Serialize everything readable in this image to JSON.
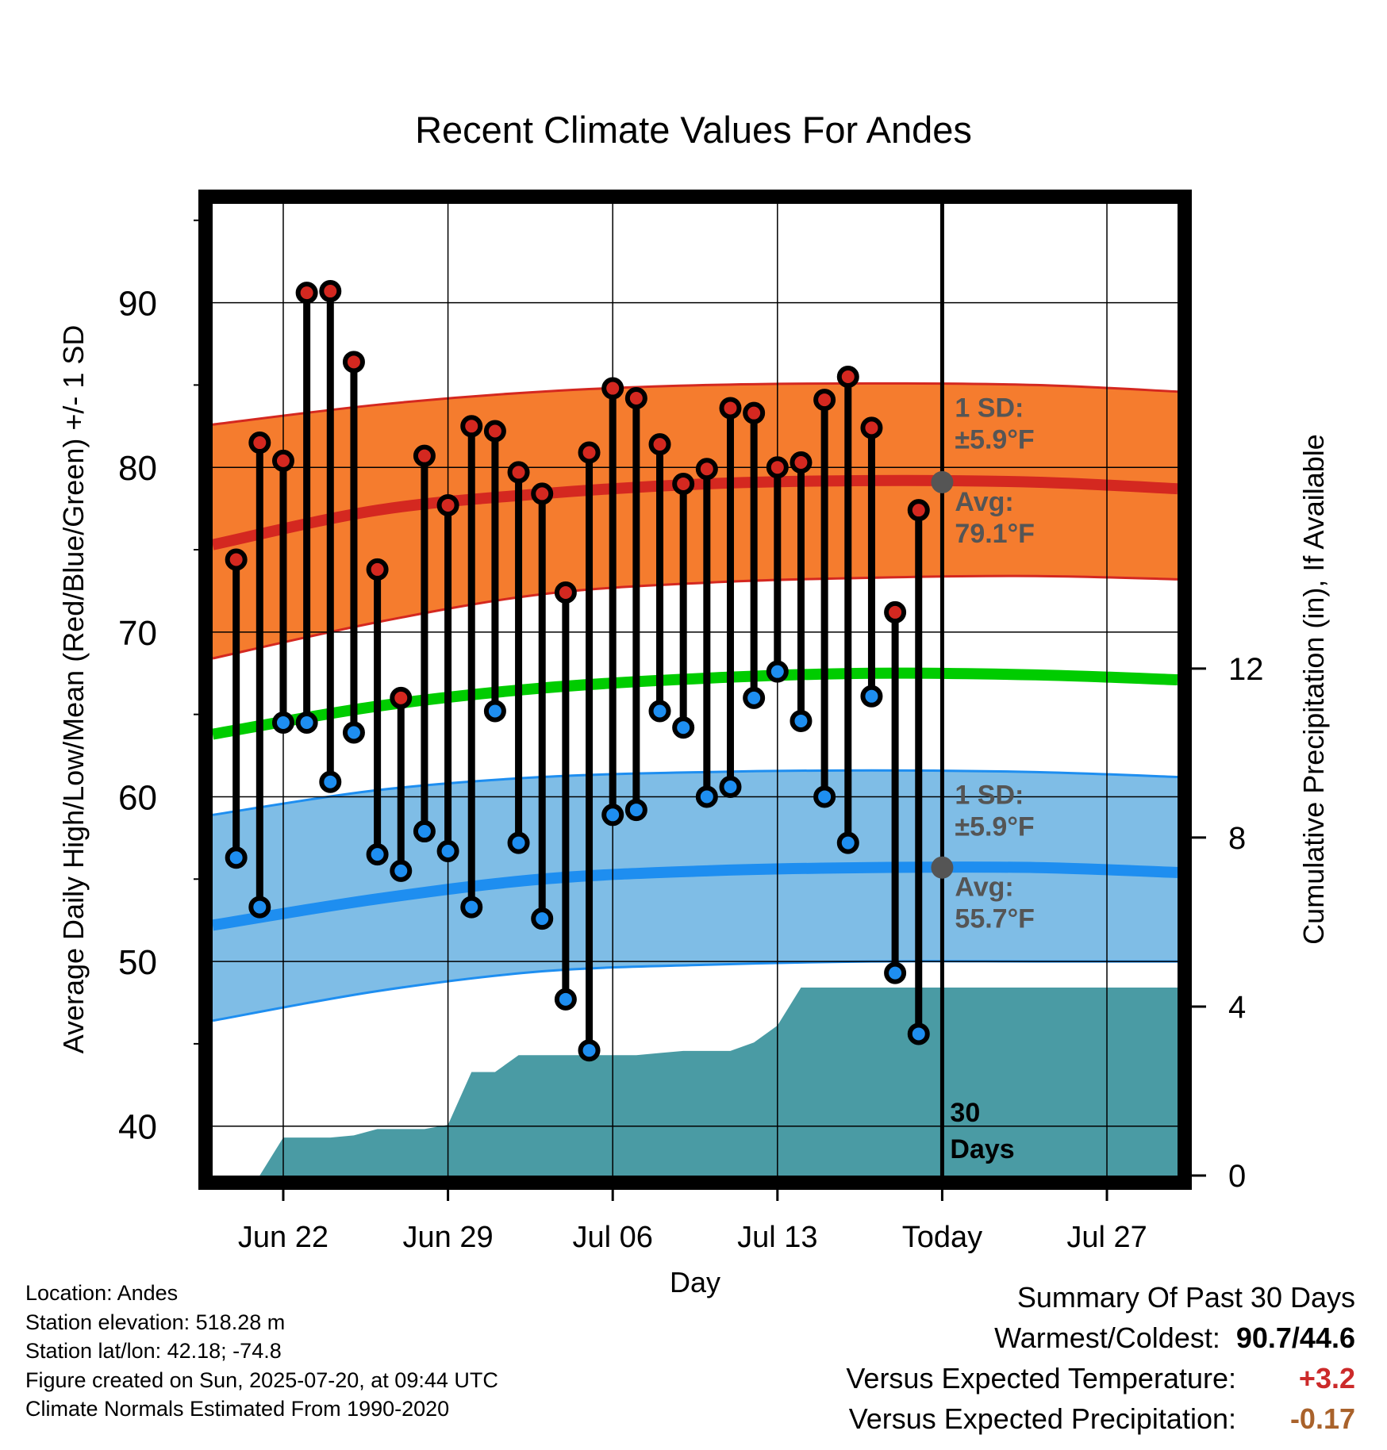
{
  "chart_data": {
    "type": "line",
    "title": "Recent Climate Values For Andes",
    "xlabel": "Day",
    "ylabel": "Average Daily High/Low/Mean (Red/Blue/Green) +/- 1 SD",
    "y2label": "Cumulative Precipitation (in), If Available",
    "x_start": "Jun 19",
    "x_end": "Jul 30",
    "xticks": [
      "Jun 22",
      "Jun 29",
      "Jul 06",
      "Jul 13",
      "Today",
      "Jul 27"
    ],
    "xtick_dates": [
      "Jun 22",
      "Jun 29",
      "Jul 06",
      "Jul 13",
      "Jul 20",
      "Jul 27"
    ],
    "ylim": [
      37,
      96
    ],
    "yticks": [
      40,
      50,
      60,
      70,
      80,
      90
    ],
    "y2lim": [
      0,
      23
    ],
    "y2ticks": [
      0,
      4,
      8,
      12
    ],
    "grid": true,
    "today_date": "Jul 20",
    "today_label": "30 Days",
    "dates": [
      "Jun 20",
      "Jun 21",
      "Jun 22",
      "Jun 23",
      "Jun 24",
      "Jun 25",
      "Jun 26",
      "Jun 27",
      "Jun 28",
      "Jun 29",
      "Jun 30",
      "Jul 01",
      "Jul 02",
      "Jul 03",
      "Jul 04",
      "Jul 05",
      "Jul 06",
      "Jul 07",
      "Jul 08",
      "Jul 09",
      "Jul 10",
      "Jul 11",
      "Jul 12",
      "Jul 13",
      "Jul 14",
      "Jul 15",
      "Jul 16",
      "Jul 17",
      "Jul 18",
      "Jul 19"
    ],
    "highs": [
      74.4,
      81.5,
      80.4,
      90.6,
      90.7,
      86.4,
      73.8,
      66.0,
      80.7,
      77.7,
      82.5,
      82.2,
      79.7,
      78.4,
      72.4,
      80.9,
      84.8,
      84.2,
      81.4,
      79.0,
      79.9,
      83.6,
      83.3,
      80.0,
      80.3,
      84.1,
      85.5,
      82.4,
      71.2,
      77.4
    ],
    "lows": [
      56.3,
      53.3,
      64.5,
      64.5,
      60.9,
      63.9,
      56.5,
      55.5,
      57.9,
      56.7,
      53.3,
      65.2,
      57.2,
      52.6,
      47.7,
      44.6,
      58.9,
      59.2,
      65.2,
      64.2,
      60.0,
      60.6,
      66.0,
      67.6,
      64.6,
      60.0,
      57.2,
      66.1,
      49.3,
      45.6
    ],
    "normal_high": {
      "dates": [
        "Jun 19",
        "Jun 26",
        "Jul 03",
        "Jul 10",
        "Jul 17",
        "Jul 24",
        "Jul 30"
      ],
      "mean": [
        75.3,
        77.4,
        78.4,
        79.0,
        79.2,
        79.1,
        78.7
      ],
      "upper": [
        82.6,
        83.8,
        84.6,
        85.0,
        85.1,
        85.0,
        84.6
      ],
      "lower": [
        68.4,
        70.6,
        72.3,
        73.0,
        73.3,
        73.4,
        73.2
      ],
      "sd_text": "±5.9°F",
      "avg_text": "79.1°F"
    },
    "normal_low": {
      "dates": [
        "Jun 19",
        "Jun 26",
        "Jul 03",
        "Jul 10",
        "Jul 17",
        "Jul 24",
        "Jul 30"
      ],
      "mean": [
        52.2,
        53.8,
        55.0,
        55.5,
        55.7,
        55.7,
        55.4
      ],
      "upper": [
        58.9,
        60.4,
        61.2,
        61.5,
        61.6,
        61.5,
        61.2
      ],
      "lower": [
        46.4,
        48.2,
        49.4,
        49.8,
        50.0,
        50.0,
        50.0
      ],
      "sd_text": "±5.9°F",
      "avg_text": "55.7°F"
    },
    "normal_mean": {
      "dates": [
        "Jun 19",
        "Jun 26",
        "Jul 03",
        "Jul 10",
        "Jul 17",
        "Jul 24",
        "Jul 30"
      ],
      "values": [
        63.8,
        65.5,
        66.6,
        67.2,
        67.5,
        67.4,
        67.1
      ]
    },
    "precip_cumulative": {
      "dates": [
        "Jun 20",
        "Jun 21",
        "Jun 22",
        "Jun 23",
        "Jun 24",
        "Jun 25",
        "Jun 26",
        "Jun 27",
        "Jun 28",
        "Jun 29",
        "Jun 30",
        "Jul 01",
        "Jul 02",
        "Jul 03",
        "Jul 04",
        "Jul 05",
        "Jul 06",
        "Jul 07",
        "Jul 08",
        "Jul 09",
        "Jul 10",
        "Jul 11",
        "Jul 12",
        "Jul 13",
        "Jul 14",
        "Jul 15",
        "Jul 16",
        "Jul 17",
        "Jul 18",
        "Jul 19",
        "Jul 30"
      ],
      "values": [
        0.0,
        0.0,
        0.9,
        0.9,
        0.9,
        0.95,
        1.1,
        1.1,
        1.1,
        1.2,
        2.45,
        2.45,
        2.85,
        2.85,
        2.85,
        2.85,
        2.85,
        2.85,
        2.9,
        2.95,
        2.95,
        2.95,
        3.15,
        3.55,
        4.45,
        4.45,
        4.45,
        4.45,
        4.45,
        4.45,
        4.45
      ]
    }
  },
  "labels": {
    "sd_label": "1 SD:",
    "avg_label": "Avg:"
  },
  "info": {
    "location": "Location: Andes",
    "elevation": "Station elevation: 518.28 m",
    "latlon": "Station lat/lon: 42.18; -74.8",
    "created": "Figure created on Sun, 2025-07-20, at 09:44 UTC",
    "normals": "Climate Normals Estimated From 1990-2020"
  },
  "summary": {
    "title": "Summary Of Past 30 Days",
    "warmest_label": "Warmest/Coldest:",
    "warmest_value": "90.7/44.6",
    "temp_label": "Versus Expected Temperature:",
    "temp_value": "+3.2",
    "precip_label": "Versus Expected Precipitation:",
    "precip_value": "-0.17"
  },
  "colors": {
    "high_band": "#f57c2e",
    "high_line": "#d42820",
    "low_band": "#7fbde6",
    "low_line": "#1e8ef0",
    "mean_line": "#00cc00",
    "precip": "#4a9ba4",
    "high_dot": "#d42820",
    "low_dot": "#1e8ef0",
    "label_gray": "#555555",
    "temp_positive": "#cc2a2a",
    "precip_negative": "#a9622b"
  }
}
